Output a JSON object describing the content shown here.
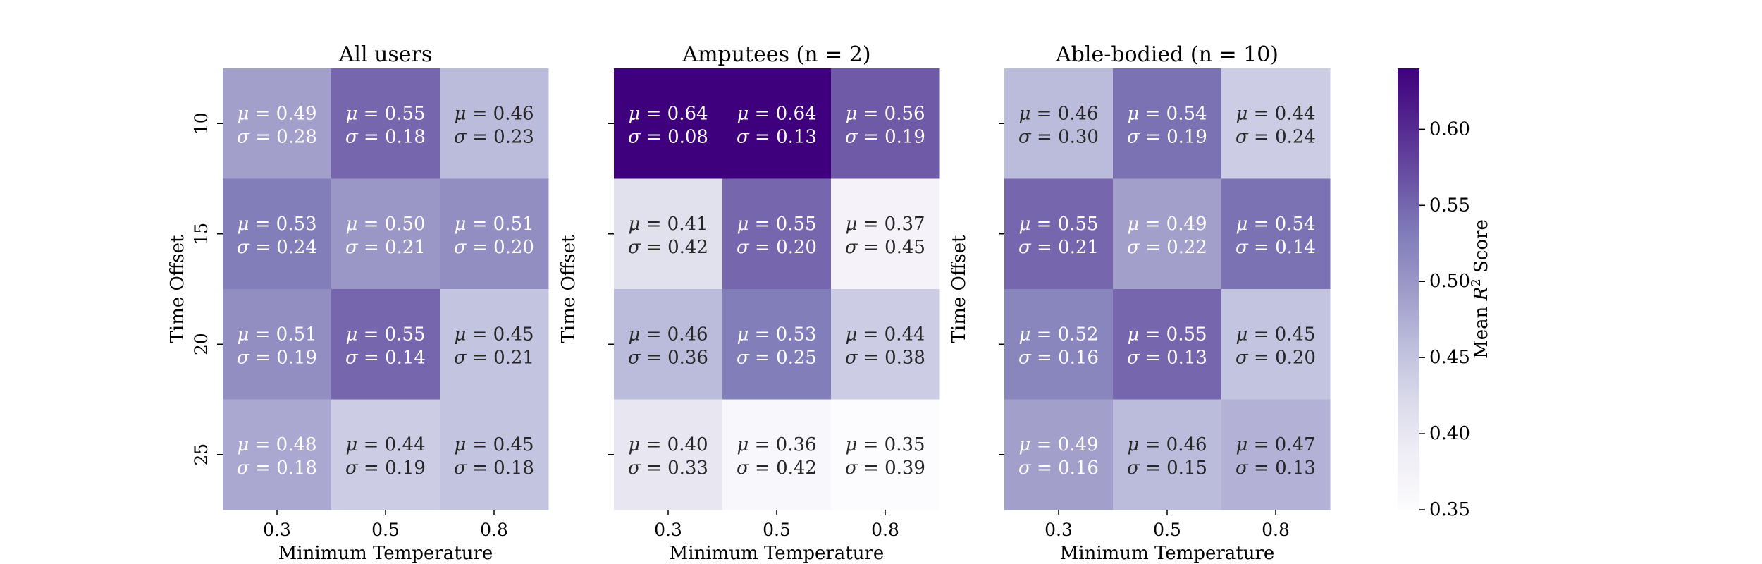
{
  "chart_data": {
    "type": "heatmap",
    "colormap": "Purples",
    "value_range": [
      0.35,
      0.64
    ],
    "colorbar": {
      "label_prefix": "Mean ",
      "label_var": "R",
      "label_sup": "2",
      "label_suffix": " Score",
      "ticks": [
        "0.35",
        "0.40",
        "0.45",
        "0.50",
        "0.55",
        "0.60"
      ]
    },
    "ylabel": "Time Offset",
    "xlabel": "Minimum Temperature",
    "x_ticks": [
      "0.3",
      "0.5",
      "0.8"
    ],
    "y_ticks": [
      "10",
      "15",
      "20",
      "25"
    ],
    "panels": [
      {
        "title": "All users",
        "mean": [
          [
            0.49,
            0.55,
            0.46
          ],
          [
            0.53,
            0.5,
            0.51
          ],
          [
            0.51,
            0.55,
            0.45
          ],
          [
            0.48,
            0.44,
            0.45
          ]
        ],
        "std": [
          [
            0.28,
            0.18,
            0.23
          ],
          [
            0.24,
            0.21,
            0.2
          ],
          [
            0.19,
            0.14,
            0.21
          ],
          [
            0.18,
            0.19,
            0.18
          ]
        ],
        "show_y_tick_labels": true
      },
      {
        "title": "Amputees (n = 2)",
        "mean": [
          [
            0.64,
            0.64,
            0.56
          ],
          [
            0.41,
            0.55,
            0.37
          ],
          [
            0.46,
            0.53,
            0.44
          ],
          [
            0.4,
            0.36,
            0.35
          ]
        ],
        "std": [
          [
            0.08,
            0.13,
            0.19
          ],
          [
            0.42,
            0.2,
            0.45
          ],
          [
            0.36,
            0.25,
            0.38
          ],
          [
            0.33,
            0.42,
            0.39
          ]
        ],
        "show_y_tick_labels": false
      },
      {
        "title": "Able-bodied (n = 10)",
        "mean": [
          [
            0.46,
            0.54,
            0.44
          ],
          [
            0.55,
            0.49,
            0.54
          ],
          [
            0.52,
            0.55,
            0.45
          ],
          [
            0.49,
            0.46,
            0.47
          ]
        ],
        "std": [
          [
            0.3,
            0.19,
            0.24
          ],
          [
            0.21,
            0.22,
            0.14
          ],
          [
            0.16,
            0.13,
            0.2
          ],
          [
            0.16,
            0.15,
            0.13
          ]
        ],
        "show_y_tick_labels": false
      }
    ]
  }
}
